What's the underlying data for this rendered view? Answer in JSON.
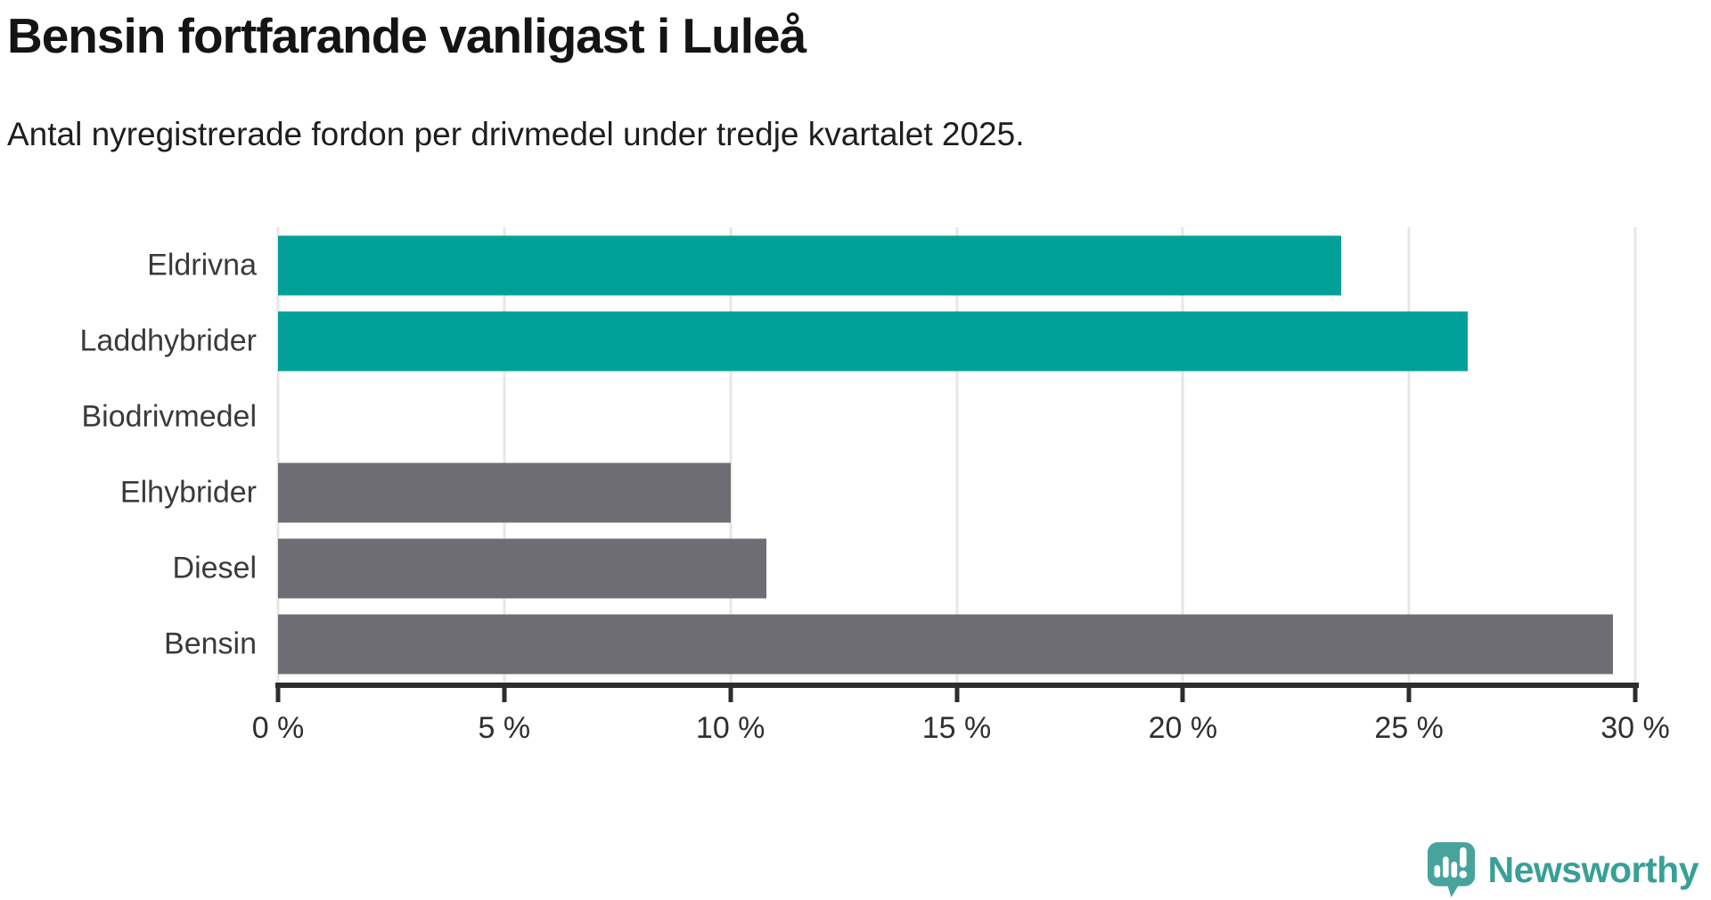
{
  "title": "Bensin fortfarande vanligast i Luleå",
  "subtitle": "Antal nyregistrerade fordon per drivmedel under tredje kvartalet 2025.",
  "chart_data": {
    "type": "bar",
    "orientation": "horizontal",
    "title": "Bensin fortfarande vanligast i Luleå",
    "subtitle": "Antal nyregistrerade fordon per drivmedel under tredje kvartalet 2025.",
    "categories": [
      "Eldrivna",
      "Laddhybrider",
      "Biodrivmedel",
      "Elhybrider",
      "Diesel",
      "Bensin"
    ],
    "values": [
      23.5,
      26.3,
      0,
      10.0,
      10.8,
      29.5
    ],
    "unit": "%",
    "xlim": [
      0,
      30
    ],
    "x_tick_values": [
      0,
      5,
      10,
      15,
      20,
      25,
      30
    ],
    "x_tick_labels": [
      "0 %",
      "5 %",
      "10 %",
      "15 %",
      "20 %",
      "25 %",
      "30 %"
    ],
    "bar_colors": [
      "#00a099",
      "#00a099",
      "#00a099",
      "#6d6d73",
      "#6d6d73",
      "#6d6d73"
    ],
    "grid": true,
    "legend": false,
    "xlabel": "",
    "ylabel": ""
  },
  "colors": {
    "highlight_teal": "#00a099",
    "neutral_gray": "#6d6d73",
    "gridline": "#e7e7e7",
    "axis": "#2d2d2d",
    "title_text": "#141414",
    "label_text": "#3a3a3a",
    "brand_teal": "#38a096",
    "brand_icon_teal": "#47a39c"
  },
  "branding": {
    "logo_text": "Newsworthy",
    "logo_icon": "newsworthy-speech-bubble-chart-icon"
  }
}
